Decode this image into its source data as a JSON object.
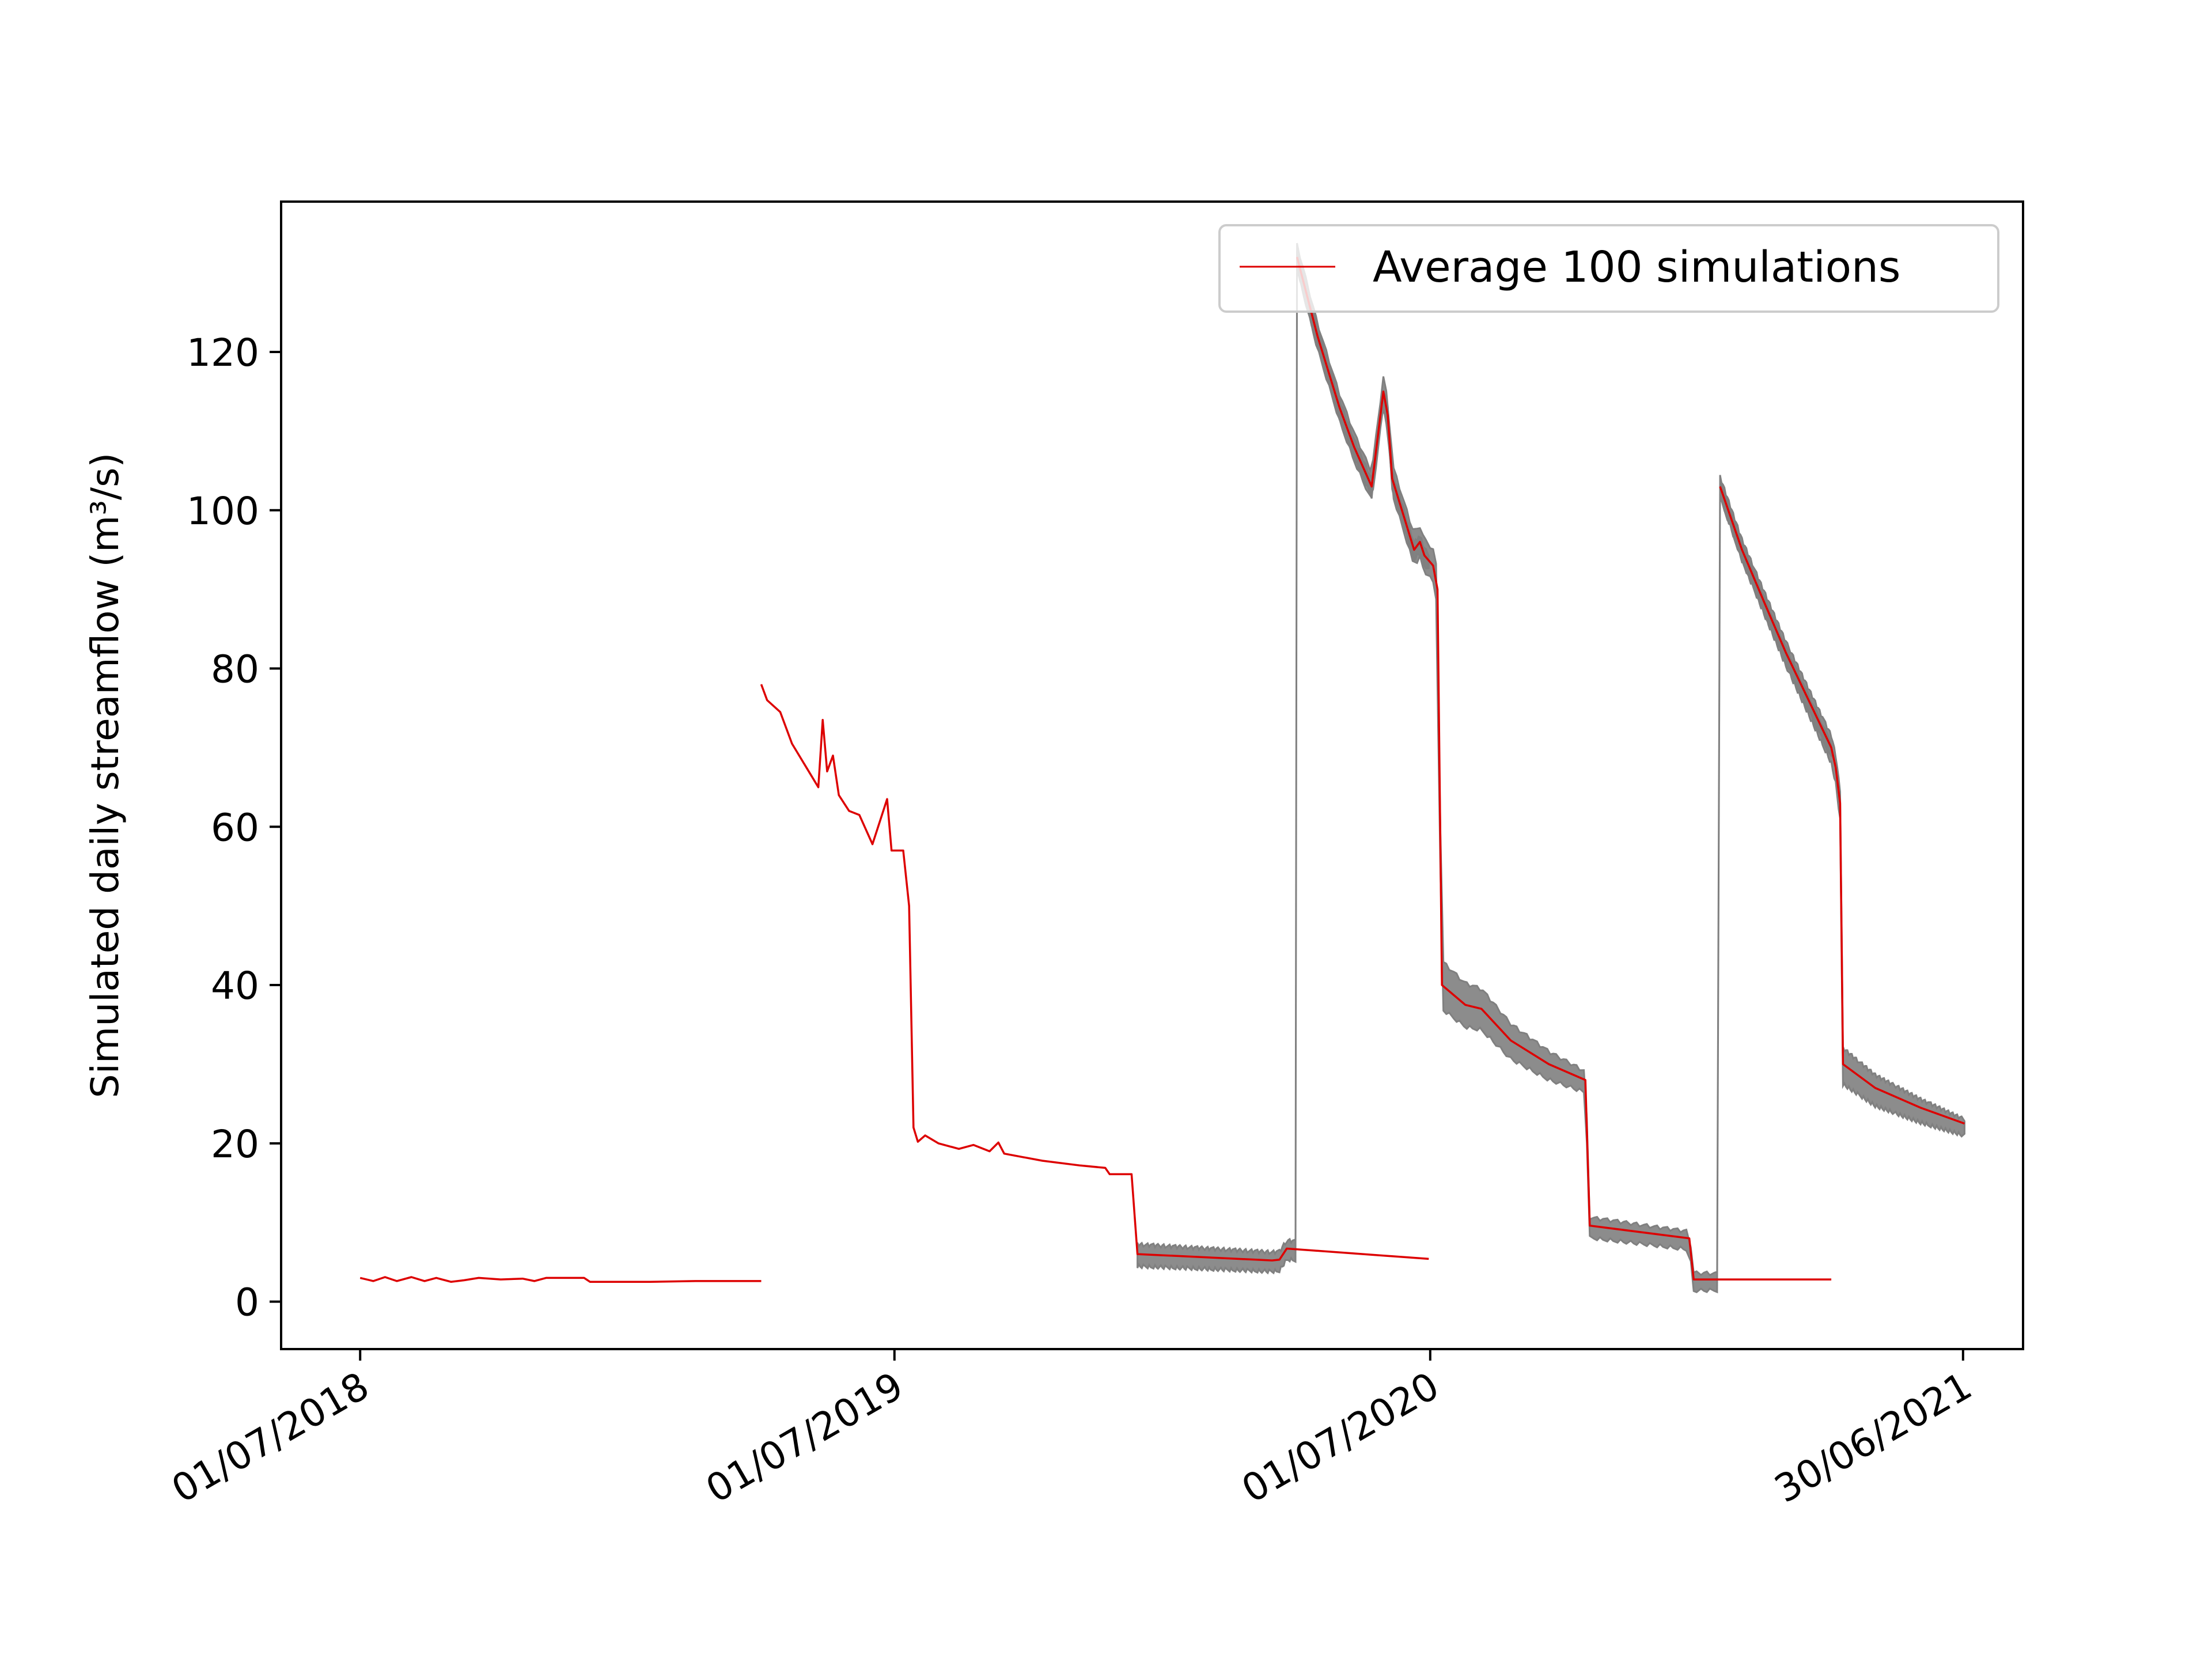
{
  "chart_data": {
    "type": "line",
    "title": "",
    "xlabel": "",
    "ylabel": "Simulated daily streamflow (m³/s)",
    "ylim": [
      -6,
      139
    ],
    "xlim": [
      "2018-05-08",
      "2021-08-10"
    ],
    "yticks": [
      0,
      20,
      40,
      60,
      80,
      100,
      120
    ],
    "xticks": [
      {
        "date": "2018-07-01",
        "label": "01/07/2018"
      },
      {
        "date": "2019-07-01",
        "label": "01/07/2019"
      },
      {
        "date": "2020-07-01",
        "label": "01/07/2020"
      },
      {
        "date": "2021-06-30",
        "label": "30/06/2021"
      }
    ],
    "grid": false,
    "legend": {
      "placement": "upper right",
      "entries": [
        "Average 100 simulations"
      ]
    },
    "colors": {
      "average": "#dd0000",
      "simulations": "#808080"
    },
    "series": [
      {
        "name": "Average 100 simulations",
        "segments": [
          [
            [
              "2018-07-01",
              3.0
            ],
            [
              "2018-07-10",
              2.6
            ],
            [
              "2018-07-18",
              3.1
            ],
            [
              "2018-07-26",
              2.6
            ],
            [
              "2018-08-05",
              3.1
            ],
            [
              "2018-08-14",
              2.6
            ],
            [
              "2018-08-22",
              3.0
            ],
            [
              "2018-09-01",
              2.5
            ],
            [
              "2018-09-10",
              2.7
            ],
            [
              "2018-09-20",
              3.0
            ],
            [
              "2018-10-05",
              2.8
            ],
            [
              "2018-10-20",
              2.9
            ],
            [
              "2018-10-28",
              2.6
            ],
            [
              "2018-11-05",
              3.0
            ],
            [
              "2018-12-01",
              3.0
            ],
            [
              "2018-12-05",
              2.5
            ],
            [
              "2019-01-15",
              2.5
            ],
            [
              "2019-02-15",
              2.6
            ],
            [
              "2019-04-01",
              2.6
            ]
          ],
          [
            [
              "2019-04-01",
              78.0
            ],
            [
              "2019-04-05",
              76.0
            ],
            [
              "2019-04-14",
              74.5
            ],
            [
              "2019-04-22",
              70.5
            ],
            [
              "2019-05-10",
              65.0
            ],
            [
              "2019-05-13",
              73.5
            ],
            [
              "2019-05-16",
              67.0
            ],
            [
              "2019-05-20",
              69.0
            ],
            [
              "2019-05-24",
              64.0
            ],
            [
              "2019-05-31",
              62.0
            ],
            [
              "2019-06-07",
              61.5
            ],
            [
              "2019-06-16",
              57.8
            ],
            [
              "2019-06-26",
              63.5
            ],
            [
              "2019-06-29",
              57.0
            ],
            [
              "2019-07-07",
              57.0
            ],
            [
              "2019-07-11",
              50.0
            ],
            [
              "2019-07-14",
              22.0
            ],
            [
              "2019-07-17",
              20.2
            ],
            [
              "2019-07-22",
              21.0
            ],
            [
              "2019-07-31",
              20.0
            ],
            [
              "2019-08-14",
              19.3
            ],
            [
              "2019-08-24",
              19.8
            ],
            [
              "2019-09-04",
              19.0
            ],
            [
              "2019-09-10",
              20.1
            ],
            [
              "2019-09-14",
              18.7
            ],
            [
              "2019-10-10",
              17.8
            ],
            [
              "2019-11-05",
              17.2
            ],
            [
              "2019-11-22",
              16.9
            ],
            [
              "2019-11-25",
              16.1
            ],
            [
              "2019-12-10",
              16.1
            ],
            [
              "2019-12-14",
              6.0
            ],
            [
              "2020-03-15",
              5.2
            ],
            [
              "2020-03-20",
              5.3
            ],
            [
              "2020-03-25",
              6.7
            ],
            [
              "2020-06-30",
              5.4
            ]
          ],
          [
            [
              "2020-04-01",
              132.0
            ],
            [
              "2020-04-15",
              122.0
            ],
            [
              "2020-04-30",
              113.0
            ],
            [
              "2020-05-10",
              108.0
            ],
            [
              "2020-05-22",
              103.0
            ],
            [
              "2020-05-30",
              115.0
            ],
            [
              "2020-06-02",
              112.0
            ],
            [
              "2020-06-05",
              104.0
            ],
            [
              "2020-06-20",
              95.0
            ],
            [
              "2020-06-24",
              96.0
            ],
            [
              "2020-06-27",
              94.3
            ],
            [
              "2020-07-03",
              93.0
            ],
            [
              "2020-07-06",
              90.0
            ],
            [
              "2020-07-09",
              40.0
            ],
            [
              "2020-07-25",
              37.5
            ],
            [
              "2020-08-05",
              37.0
            ],
            [
              "2020-08-25",
              33.0
            ],
            [
              "2020-09-20",
              30.0
            ],
            [
              "2020-10-15",
              28.0
            ],
            [
              "2020-10-18",
              9.6
            ],
            [
              "2020-12-25",
              8.0
            ],
            [
              "2020-12-28",
              2.8
            ],
            [
              "2021-01-31",
              2.8
            ],
            [
              "2021-04-01",
              2.8
            ]
          ],
          [
            [
              "2021-01-15",
              103.0
            ],
            [
              "2021-01-30",
              95.0
            ],
            [
              "2021-02-15",
              88.0
            ],
            [
              "2021-03-01",
              82.0
            ],
            [
              "2021-04-01",
              70.0
            ],
            [
              "2021-04-04",
              67.5
            ],
            [
              "2021-04-07",
              63.0
            ],
            [
              "2021-04-09",
              30.0
            ],
            [
              "2021-05-01",
              27.0
            ],
            [
              "2021-06-01",
              24.5
            ],
            [
              "2021-07-01",
              22.5
            ]
          ]
        ]
      }
    ],
    "simulation_band": {
      "description_label": "",
      "offsets": [
        [
          [
            "2019-12-14",
            1.2,
            -1.5
          ],
          [
            "2020-06-30",
            0.8,
            -1.2
          ]
        ],
        [
          [
            "2020-04-01",
            1.5,
            -1.5
          ],
          [
            "2020-07-06",
            2.0,
            -2.0
          ],
          [
            "2020-07-09",
            3.0,
            -3.0
          ],
          [
            "2020-10-18",
            1.0,
            -1.5
          ],
          [
            "2021-04-01",
            0.5,
            -1.2
          ]
        ],
        [
          [
            "2021-01-15",
            1.2,
            -1.2
          ],
          [
            "2021-04-07",
            1.5,
            -2.0
          ],
          [
            "2021-04-09",
            2.0,
            -2.5
          ],
          [
            "2021-07-01",
            0.5,
            -1.5
          ]
        ]
      ]
    }
  }
}
